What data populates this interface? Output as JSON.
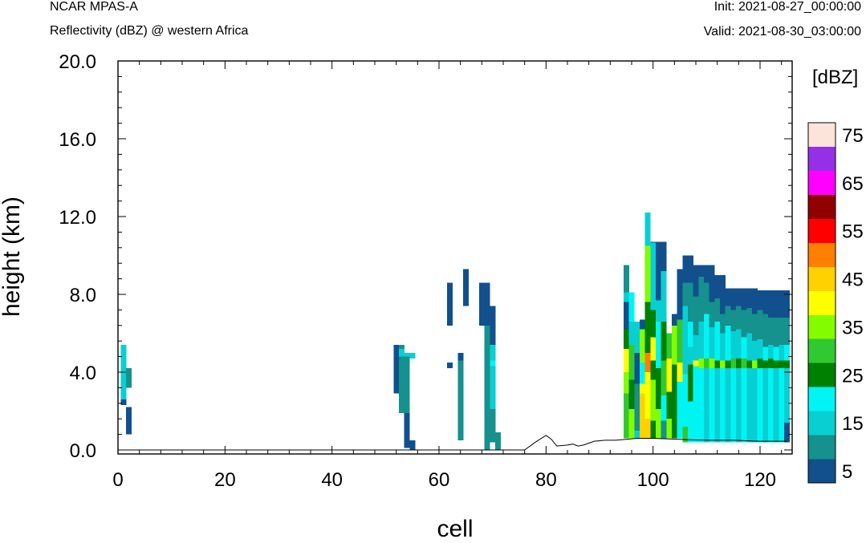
{
  "header": {
    "model": "NCAR MPAS-A",
    "field": "Reflectivity (dBZ) @ western Africa",
    "init": "Init: 2021-08-27_00:00:00",
    "valid": "Valid: 2021-08-30_03:00:00"
  },
  "chart_data": {
    "type": "heatmap",
    "xlabel": "cell",
    "ylabel": "height (km)",
    "xlim": [
      0,
      126
    ],
    "ylim": [
      0,
      20
    ],
    "x_ticks": [
      0,
      20,
      40,
      60,
      80,
      100,
      120
    ],
    "x_tick_labels": [
      "0",
      "20",
      "40",
      "60",
      "80",
      "100",
      "120"
    ],
    "y_ticks": [
      0,
      4,
      8,
      12,
      16,
      20
    ],
    "y_tick_labels": [
      "0.0",
      "4.0",
      "8.0",
      "12.0",
      "16.0",
      "20.0"
    ],
    "colorbar": {
      "title": "[dBZ]",
      "labels": [
        "5",
        "15",
        "25",
        "35",
        "45",
        "55",
        "65",
        "75"
      ],
      "levels": [
        5,
        10,
        15,
        20,
        25,
        30,
        35,
        40,
        45,
        50,
        55,
        60,
        65,
        70,
        75
      ],
      "colors": [
        "#11508c",
        "#15918e",
        "#0acfd2",
        "#00f4f4",
        "#008000",
        "#31c931",
        "#83fc00",
        "#fffe00",
        "#ffd100",
        "#ff7f00",
        "#ff0000",
        "#900000",
        "#ff00ff",
        "#9630e8",
        "#fde4da"
      ]
    },
    "terrain": [
      [
        70,
        0.0
      ],
      [
        76,
        0.0
      ],
      [
        78,
        0.4
      ],
      [
        80,
        0.75
      ],
      [
        81,
        0.55
      ],
      [
        82,
        0.2
      ],
      [
        84,
        0.25
      ],
      [
        85,
        0.3
      ],
      [
        86,
        0.2
      ],
      [
        87,
        0.25
      ],
      [
        89,
        0.45
      ],
      [
        91,
        0.5
      ],
      [
        93,
        0.5
      ],
      [
        95,
        0.55
      ],
      [
        97,
        0.6
      ],
      [
        100,
        0.6
      ],
      [
        105,
        0.55
      ],
      [
        110,
        0.5
      ],
      [
        115,
        0.5
      ],
      [
        120,
        0.45
      ],
      [
        125,
        0.45
      ]
    ],
    "columns": [
      {
        "x": 1,
        "segments": [
          [
            2.3,
            2.6,
            5
          ],
          [
            2.6,
            5.4,
            15
          ]
        ]
      },
      {
        "x": 2,
        "segments": [
          [
            0.8,
            2.2,
            5
          ],
          [
            3.2,
            4.2,
            10
          ]
        ]
      },
      {
        "x": 52,
        "segments": [
          [
            2.9,
            5.4,
            5
          ]
        ]
      },
      {
        "x": 53,
        "segments": [
          [
            1.9,
            5.4,
            10
          ],
          [
            4.8,
            5.2,
            15
          ]
        ]
      },
      {
        "x": 54,
        "segments": [
          [
            0.1,
            1.9,
            5
          ],
          [
            1.9,
            5.0,
            10
          ],
          [
            4.8,
            5.0,
            15
          ]
        ]
      },
      {
        "x": 55,
        "segments": [
          [
            0.0,
            0.5,
            5
          ],
          [
            4.7,
            5.0,
            15
          ]
        ]
      },
      {
        "x": 62,
        "segments": [
          [
            6.4,
            8.6,
            5
          ],
          [
            4.2,
            4.5,
            5
          ]
        ]
      },
      {
        "x": 64,
        "segments": [
          [
            0.5,
            5.0,
            10
          ],
          [
            4.6,
            5.0,
            5
          ]
        ]
      },
      {
        "x": 65,
        "segments": [
          [
            7.4,
            9.3,
            5
          ]
        ]
      },
      {
        "x": 68,
        "segments": [
          [
            6.4,
            8.6,
            5
          ]
        ]
      },
      {
        "x": 69,
        "segments": [
          [
            0.0,
            2.1,
            10
          ],
          [
            2.1,
            6.4,
            10
          ],
          [
            6.4,
            8.6,
            5
          ]
        ]
      },
      {
        "x": 70,
        "segments": [
          [
            0.4,
            2.1,
            10
          ],
          [
            2.1,
            5.4,
            15
          ],
          [
            4.3,
            4.6,
            20
          ],
          [
            5.4,
            7.4,
            5
          ]
        ]
      },
      {
        "x": 71,
        "segments": [
          [
            0.0,
            0.9,
            10
          ]
        ]
      },
      {
        "x": 95,
        "segments": [
          [
            0.6,
            2.9,
            30
          ],
          [
            2.9,
            4.0,
            35
          ],
          [
            4.0,
            5.2,
            40
          ],
          [
            5.2,
            6.2,
            25
          ],
          [
            6.2,
            7.6,
            5
          ],
          [
            7.6,
            8.1,
            15
          ],
          [
            8.1,
            9.5,
            10
          ]
        ]
      },
      {
        "x": 96,
        "segments": [
          [
            0.6,
            2.1,
            35
          ],
          [
            2.1,
            3.6,
            25
          ],
          [
            3.6,
            5.4,
            30
          ],
          [
            5.4,
            6.6,
            15
          ],
          [
            6.6,
            8.1,
            20
          ]
        ]
      },
      {
        "x": 97,
        "segments": [
          [
            0.6,
            1.0,
            15
          ],
          [
            1.0,
            3.4,
            10
          ],
          [
            3.4,
            5.0,
            5
          ],
          [
            5.0,
            6.6,
            15
          ]
        ]
      },
      {
        "x": 98,
        "segments": [
          [
            0.6,
            2.9,
            45
          ],
          [
            2.9,
            3.4,
            40
          ],
          [
            3.4,
            4.5,
            20
          ],
          [
            4.5,
            6.2,
            35
          ],
          [
            6.2,
            6.7,
            5
          ]
        ]
      },
      {
        "x": 99,
        "segments": [
          [
            0.6,
            1.6,
            45
          ],
          [
            1.6,
            4.0,
            40
          ],
          [
            4.0,
            5.0,
            50
          ],
          [
            5.0,
            7.6,
            25
          ],
          [
            7.6,
            10.5,
            35
          ],
          [
            10.5,
            12.2,
            15
          ]
        ]
      },
      {
        "x": 100,
        "segments": [
          [
            0.6,
            1.5,
            25
          ],
          [
            1.5,
            3.6,
            35
          ],
          [
            3.6,
            4.6,
            25
          ],
          [
            4.6,
            5.8,
            40
          ],
          [
            5.8,
            7.2,
            25
          ],
          [
            7.2,
            10.7,
            15
          ],
          [
            10.7,
            10.7,
            5
          ]
        ]
      },
      {
        "x": 101,
        "segments": [
          [
            0.6,
            2.1,
            35
          ],
          [
            2.1,
            4.2,
            25
          ],
          [
            4.2,
            6.6,
            20
          ],
          [
            6.6,
            7.7,
            15
          ],
          [
            7.7,
            10.7,
            5
          ]
        ]
      },
      {
        "x": 102,
        "segments": [
          [
            0.6,
            1.5,
            10
          ],
          [
            1.5,
            2.8,
            20
          ],
          [
            2.8,
            4.6,
            30
          ],
          [
            4.6,
            6.6,
            25
          ],
          [
            6.6,
            9.2,
            15
          ],
          [
            9.2,
            10.7,
            5
          ]
        ]
      },
      {
        "x": 103,
        "segments": [
          [
            0.6,
            1.6,
            35
          ],
          [
            1.6,
            3.0,
            25
          ],
          [
            3.0,
            4.7,
            40
          ],
          [
            4.7,
            6.0,
            30
          ]
        ]
      },
      {
        "x": 104,
        "segments": [
          [
            0.6,
            4.4,
            25
          ],
          [
            4.4,
            6.4,
            35
          ],
          [
            6.4,
            7.0,
            5
          ]
        ]
      },
      {
        "x": 105,
        "segments": [
          [
            0.6,
            3.5,
            20
          ],
          [
            3.5,
            4.5,
            40
          ],
          [
            4.5,
            6.7,
            30
          ],
          [
            6.7,
            9.3,
            5
          ]
        ]
      },
      {
        "x": 106,
        "segments": [
          [
            0.4,
            1.2,
            30
          ],
          [
            1.2,
            3.9,
            20
          ],
          [
            3.9,
            5.6,
            15
          ],
          [
            5.6,
            7.4,
            15
          ],
          [
            7.4,
            8.6,
            10
          ],
          [
            8.6,
            10.0,
            5
          ]
        ]
      },
      {
        "x": 107,
        "segments": [
          [
            0.4,
            2.5,
            20
          ],
          [
            2.5,
            4.4,
            25
          ],
          [
            4.4,
            5.3,
            15
          ],
          [
            5.3,
            6.6,
            20
          ],
          [
            6.6,
            8.6,
            10
          ],
          [
            8.6,
            10.0,
            5
          ]
        ]
      },
      {
        "x": 108,
        "segments": [
          [
            0.4,
            4.3,
            20
          ],
          [
            4.3,
            4.6,
            40
          ],
          [
            4.6,
            5.9,
            15
          ],
          [
            5.9,
            7.9,
            10
          ],
          [
            7.9,
            9.5,
            5
          ]
        ]
      },
      {
        "x": 109,
        "segments": [
          [
            0.4,
            4.2,
            20
          ],
          [
            4.2,
            4.7,
            35
          ],
          [
            4.7,
            6.6,
            15
          ],
          [
            6.6,
            8.9,
            10
          ],
          [
            8.9,
            9.5,
            5
          ]
        ]
      },
      {
        "x": 110,
        "segments": [
          [
            0.4,
            4.2,
            15
          ],
          [
            4.2,
            4.7,
            30
          ],
          [
            4.7,
            7.0,
            20
          ],
          [
            7.0,
            8.6,
            10
          ],
          [
            8.6,
            9.5,
            5
          ]
        ]
      },
      {
        "x": 111,
        "segments": [
          [
            0.4,
            4.2,
            20
          ],
          [
            4.2,
            4.7,
            35
          ],
          [
            4.7,
            6.3,
            15
          ],
          [
            6.3,
            7.6,
            10
          ],
          [
            7.6,
            9.5,
            5
          ]
        ]
      },
      {
        "x": 112,
        "segments": [
          [
            0.4,
            4.2,
            15
          ],
          [
            4.2,
            4.6,
            25
          ],
          [
            4.6,
            6.6,
            20
          ],
          [
            6.6,
            7.8,
            10
          ],
          [
            7.8,
            9.0,
            5
          ]
        ]
      },
      {
        "x": 113,
        "segments": [
          [
            0.4,
            4.2,
            20
          ],
          [
            4.2,
            4.6,
            35
          ],
          [
            4.6,
            6.0,
            15
          ],
          [
            6.0,
            7.0,
            10
          ],
          [
            7.0,
            9.0,
            5
          ]
        ]
      },
      {
        "x": 114,
        "segments": [
          [
            0.4,
            4.2,
            15
          ],
          [
            4.2,
            4.6,
            25
          ],
          [
            4.6,
            6.4,
            20
          ],
          [
            6.4,
            7.4,
            10
          ],
          [
            7.4,
            8.3,
            5
          ]
        ]
      },
      {
        "x": 115,
        "segments": [
          [
            0.4,
            4.2,
            20
          ],
          [
            4.2,
            4.7,
            30
          ],
          [
            4.7,
            6.1,
            15
          ],
          [
            6.1,
            7.2,
            10
          ],
          [
            7.2,
            8.3,
            5
          ]
        ]
      },
      {
        "x": 116,
        "segments": [
          [
            0.4,
            4.2,
            15
          ],
          [
            4.2,
            4.7,
            25
          ],
          [
            4.7,
            6.2,
            15
          ],
          [
            6.2,
            7.4,
            10
          ],
          [
            7.4,
            8.3,
            5
          ]
        ]
      },
      {
        "x": 117,
        "segments": [
          [
            0.4,
            4.2,
            20
          ],
          [
            4.2,
            4.7,
            30
          ],
          [
            4.7,
            5.8,
            20
          ],
          [
            5.8,
            7.2,
            10
          ],
          [
            7.2,
            8.3,
            5
          ]
        ]
      },
      {
        "x": 118,
        "segments": [
          [
            0.4,
            4.2,
            15
          ],
          [
            4.2,
            4.6,
            25
          ],
          [
            4.6,
            6.0,
            15
          ],
          [
            6.0,
            7.3,
            10
          ],
          [
            7.3,
            8.3,
            5
          ]
        ]
      },
      {
        "x": 119,
        "segments": [
          [
            0.4,
            4.2,
            15
          ],
          [
            4.2,
            4.6,
            35
          ],
          [
            4.6,
            5.6,
            15
          ],
          [
            5.6,
            7.0,
            10
          ],
          [
            7.0,
            8.3,
            5
          ]
        ]
      },
      {
        "x": 120,
        "segments": [
          [
            0.4,
            4.2,
            20
          ],
          [
            4.2,
            4.7,
            25
          ],
          [
            4.7,
            5.7,
            15
          ],
          [
            5.7,
            7.2,
            10
          ],
          [
            7.2,
            8.2,
            5
          ]
        ]
      },
      {
        "x": 121,
        "segments": [
          [
            0.4,
            4.2,
            15
          ],
          [
            4.2,
            4.6,
            25
          ],
          [
            4.6,
            5.3,
            20
          ],
          [
            5.3,
            7.0,
            10
          ],
          [
            7.0,
            8.2,
            5
          ]
        ]
      },
      {
        "x": 122,
        "segments": [
          [
            0.4,
            4.2,
            20
          ],
          [
            4.2,
            4.7,
            25
          ],
          [
            4.7,
            5.4,
            15
          ],
          [
            5.4,
            6.8,
            10
          ],
          [
            6.8,
            8.2,
            5
          ]
        ]
      },
      {
        "x": 123,
        "segments": [
          [
            0.4,
            4.2,
            15
          ],
          [
            4.2,
            4.6,
            25
          ],
          [
            4.6,
            5.3,
            20
          ],
          [
            5.3,
            6.8,
            10
          ],
          [
            6.8,
            8.2,
            5
          ]
        ]
      },
      {
        "x": 124,
        "segments": [
          [
            0.4,
            4.2,
            20
          ],
          [
            4.2,
            4.6,
            25
          ],
          [
            4.6,
            5.4,
            15
          ],
          [
            5.4,
            6.8,
            10
          ],
          [
            6.8,
            8.2,
            5
          ]
        ]
      },
      {
        "x": 125,
        "segments": [
          [
            0.4,
            1.4,
            5
          ],
          [
            1.4,
            4.2,
            15
          ],
          [
            4.2,
            4.6,
            25
          ],
          [
            4.6,
            5.4,
            20
          ],
          [
            5.4,
            6.8,
            10
          ],
          [
            6.8,
            8.2,
            5
          ]
        ]
      }
    ]
  }
}
